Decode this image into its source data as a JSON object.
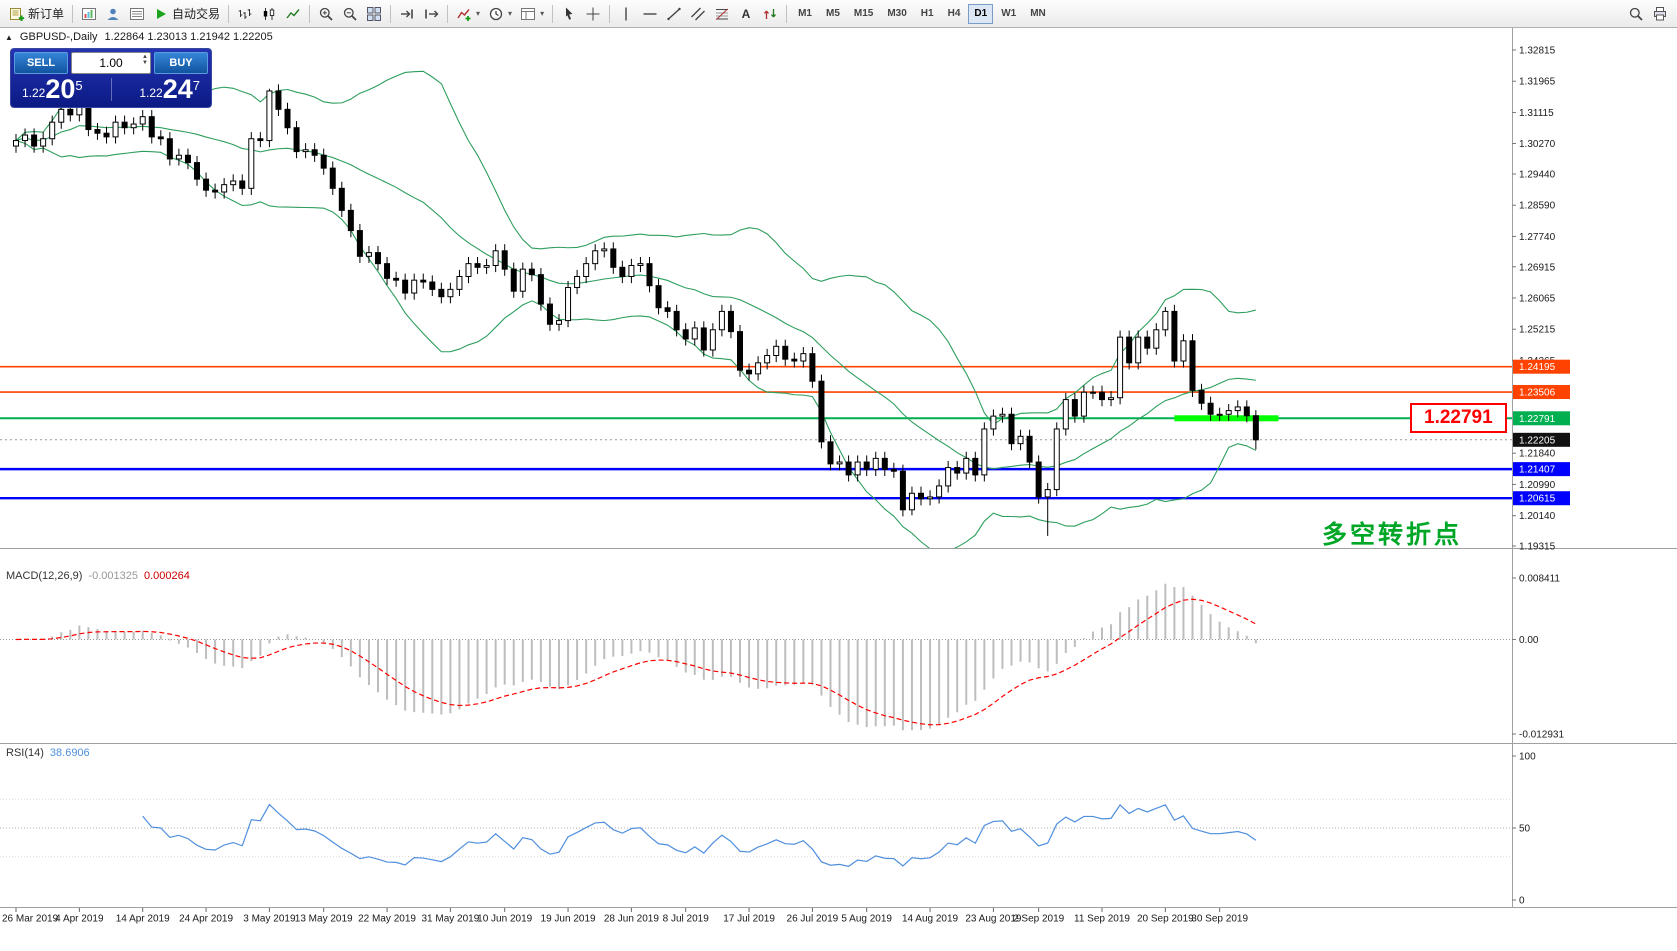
{
  "toolbar": {
    "groups": [
      {
        "items": [
          {
            "name": "new-order-button",
            "icon": "new-order",
            "label": "新订单"
          }
        ]
      },
      {
        "items": [
          {
            "name": "new-chart-button",
            "icon": "new-chart"
          },
          {
            "name": "profiles-button",
            "icon": "profiles"
          },
          {
            "name": "market-watch-button",
            "icon": "market-watch"
          },
          {
            "name": "autotrading-button",
            "icon": "autotrading",
            "label": "自动交易"
          }
        ]
      },
      {
        "items": [
          {
            "name": "bar-chart-button",
            "icon": "bar-chart"
          },
          {
            "name": "candlestick-chart-button",
            "icon": "candlesticks"
          },
          {
            "name": "line-chart-button",
            "icon": "line-chart"
          }
        ]
      },
      {
        "items": [
          {
            "name": "zoom-in-button",
            "icon": "zoom-in"
          },
          {
            "name": "zoom-out-button",
            "icon": "zoom-out"
          },
          {
            "name": "tile-windows-button",
            "icon": "tile-windows"
          }
        ]
      },
      {
        "items": [
          {
            "name": "auto-scroll-button",
            "icon": "auto-scroll"
          },
          {
            "name": "chart-shift-button",
            "icon": "chart-shift"
          }
        ]
      },
      {
        "items": [
          {
            "name": "indicators-button",
            "icon": "indicators",
            "caret": true
          },
          {
            "name": "periods-button",
            "icon": "periods",
            "caret": true
          },
          {
            "name": "templates-button",
            "icon": "templates",
            "caret": true
          }
        ]
      },
      {
        "items": [
          {
            "name": "cursor-button",
            "icon": "cursor"
          },
          {
            "name": "crosshair-button",
            "icon": "crosshair"
          }
        ]
      },
      {
        "items": [
          {
            "name": "vertical-line-button",
            "icon": "vertical-line"
          },
          {
            "name": "horizontal-line-button",
            "icon": "horizontal-line"
          },
          {
            "name": "trendline-button",
            "icon": "trendline"
          },
          {
            "name": "channel-button",
            "icon": "channel"
          },
          {
            "name": "fibonacci-button",
            "icon": "fibonacci"
          },
          {
            "name": "text-button",
            "icon": "text"
          },
          {
            "name": "arrows-button",
            "icon": "arrows"
          }
        ]
      }
    ],
    "timeframes": [
      "M1",
      "M5",
      "M15",
      "M30",
      "H1",
      "H4",
      "D1",
      "W1",
      "MN"
    ],
    "active_timeframe": "D1",
    "right_icons": [
      {
        "name": "search-button",
        "icon": "search"
      },
      {
        "name": "print-button",
        "icon": "print"
      }
    ]
  },
  "chart_header": {
    "collapse": "▲",
    "symbol": "GBPUSD-,Daily",
    "ohlc": "1.22864 1.23013 1.21942 1.22205"
  },
  "trade_widget": {
    "sell": "SELL",
    "buy": "BUY",
    "volume": "1.00",
    "bid": {
      "prefix": "1.22",
      "big": "20",
      "sup": "5"
    },
    "ask": {
      "prefix": "1.22",
      "big": "24",
      "sup": "7"
    }
  },
  "annotations": {
    "price_box": "1.22791",
    "cn_note": "多空转折点"
  },
  "panels": {
    "macd": {
      "label": "MACD(12,26,9)",
      "value_main": "-0.001325",
      "value_signal": "0.000264",
      "axis": {
        "max": "0.008411",
        "zero": "0.00",
        "min": "-0.012931"
      }
    },
    "rsi": {
      "label": "RSI(14)",
      "value": "38.6906",
      "axis": [
        "100",
        "50",
        "0"
      ]
    }
  },
  "colors": {
    "bands": "#2e9e5e",
    "candle_up": "#ffffff",
    "candle_down": "#000000",
    "orange": "#ff4200",
    "blue": "#0000ff",
    "green": "#00b050",
    "green_bright": "#00ff00",
    "red_box": "#ff0000",
    "macd_hist": "#bdbdbd",
    "macd_signal": "#ff0000",
    "rsi": "#4f8fde",
    "note_green": "#00a626",
    "current_badge": "#111111"
  },
  "chart_data": {
    "type": "candlestick",
    "symbol": "GBPUSD",
    "timeframe": "Daily",
    "price_axis_ticks": [
      "1.32815",
      "1.31965",
      "1.31115",
      "1.30270",
      "1.29440",
      "1.28590",
      "1.27740",
      "1.26915",
      "1.26065",
      "1.25215",
      "1.24365",
      "1.21840",
      "1.20990",
      "1.20140",
      "1.19315"
    ],
    "levels": [
      {
        "value": 1.24195,
        "label": "1.24195",
        "color": "#ff4200",
        "width": 1.6
      },
      {
        "value": 1.23506,
        "label": "1.23506",
        "color": "#ff4200",
        "width": 1.6
      },
      {
        "value": 1.22791,
        "label": "1.22791",
        "color": "#00b050",
        "width": 2
      },
      {
        "value": 1.21407,
        "label": "1.21407",
        "color": "#0000ff",
        "width": 2.4
      },
      {
        "value": 1.20615,
        "label": "1.20615",
        "color": "#0000ff",
        "width": 2.4
      }
    ],
    "current_price": 1.22205,
    "current_label": "1.22205",
    "first_open": 1.302,
    "default_wick": 0.0018,
    "closes": [
      1.3035,
      1.305,
      1.302,
      1.304,
      1.3085,
      1.312,
      1.3105,
      1.315,
      1.3065,
      1.3055,
      1.3045,
      1.3085,
      1.307,
      1.308,
      1.31,
      1.3045,
      1.304,
      1.2985,
      1.2995,
      1.2975,
      1.293,
      1.29,
      1.2895,
      1.2915,
      1.2925,
      1.2905,
      1.304,
      1.3035,
      1.317,
      1.312,
      1.307,
      1.3005,
      1.301,
      1.2995,
      1.296,
      1.2905,
      1.2845,
      1.279,
      1.272,
      1.273,
      1.27,
      1.266,
      1.2655,
      1.262,
      1.2655,
      1.265,
      1.263,
      1.261,
      1.263,
      1.2665,
      1.27,
      1.269,
      1.2695,
      1.2735,
      1.2685,
      1.2625,
      1.2685,
      1.267,
      1.259,
      1.2535,
      1.2545,
      1.2635,
      1.2665,
      1.27,
      1.2735,
      1.274,
      1.269,
      1.2665,
      1.2695,
      1.27,
      1.264,
      1.258,
      1.257,
      1.252,
      1.2495,
      1.2525,
      1.2465,
      1.252,
      1.257,
      1.2515,
      1.241,
      1.24,
      1.243,
      1.245,
      1.2475,
      1.244,
      1.2435,
      1.2455,
      1.238,
      1.2215,
      1.2155,
      1.216,
      1.2125,
      1.216,
      1.214,
      1.217,
      1.214,
      1.2135,
      1.203,
      1.2075,
      1.206,
      1.2065,
      1.2095,
      1.2145,
      1.213,
      1.217,
      1.2125,
      1.225,
      1.2285,
      1.229,
      1.221,
      1.223,
      1.216,
      1.2065,
      1.2085,
      1.225,
      1.233,
      1.2285,
      1.235,
      1.235,
      1.233,
      1.2335,
      1.25,
      1.243,
      1.25,
      1.247,
      1.252,
      1.257,
      1.2435,
      1.249,
      1.2355,
      1.232,
      1.229,
      1.229,
      1.23,
      1.231,
      1.2286,
      1.22205
    ],
    "wick_overrides": {
      "7": {
        "h": 1.3196
      },
      "28": {
        "h": 1.3176
      },
      "99": {
        "l": 1.2015
      },
      "114": {
        "l": 1.1959
      },
      "127": {
        "h": 1.2582
      },
      "137": {
        "h": 1.23013,
        "l": 1.21942
      }
    },
    "time_labels": [
      "26 Mar 2019",
      "4 Apr 2019",
      "14 Apr 2019",
      "24 Apr 2019",
      "3 May 2019",
      "13 May 2019",
      "22 May 2019",
      "31 May 2019",
      "10 Jun 2019",
      "19 Jun 2019",
      "28 Jun 2019",
      "8 Jul 2019",
      "17 Jul 2019",
      "26 Jul 2019",
      "5 Aug 2019",
      "14 Aug 2019",
      "23 Aug 2019",
      "2 Sep 2019",
      "11 Sep 2019",
      "20 Sep 2019",
      "30 Sep 2019"
    ],
    "label_bar_indices": [
      0,
      7,
      14,
      21,
      28,
      34,
      41,
      48,
      54,
      61,
      68,
      74,
      81,
      88,
      94,
      101,
      108,
      113,
      120,
      127,
      133
    ],
    "bollinger": {
      "period": 20,
      "deviation": 2
    },
    "macd": {
      "fast": 12,
      "slow": 26,
      "signal": 9,
      "axis_max": 0.008411,
      "axis_min": -0.012931
    },
    "rsi": {
      "period": 14,
      "levels": [
        30,
        50,
        70
      ]
    },
    "highlight_segment": {
      "price": 1.22791,
      "from_bar": 128,
      "to_bar": 139.5
    }
  }
}
